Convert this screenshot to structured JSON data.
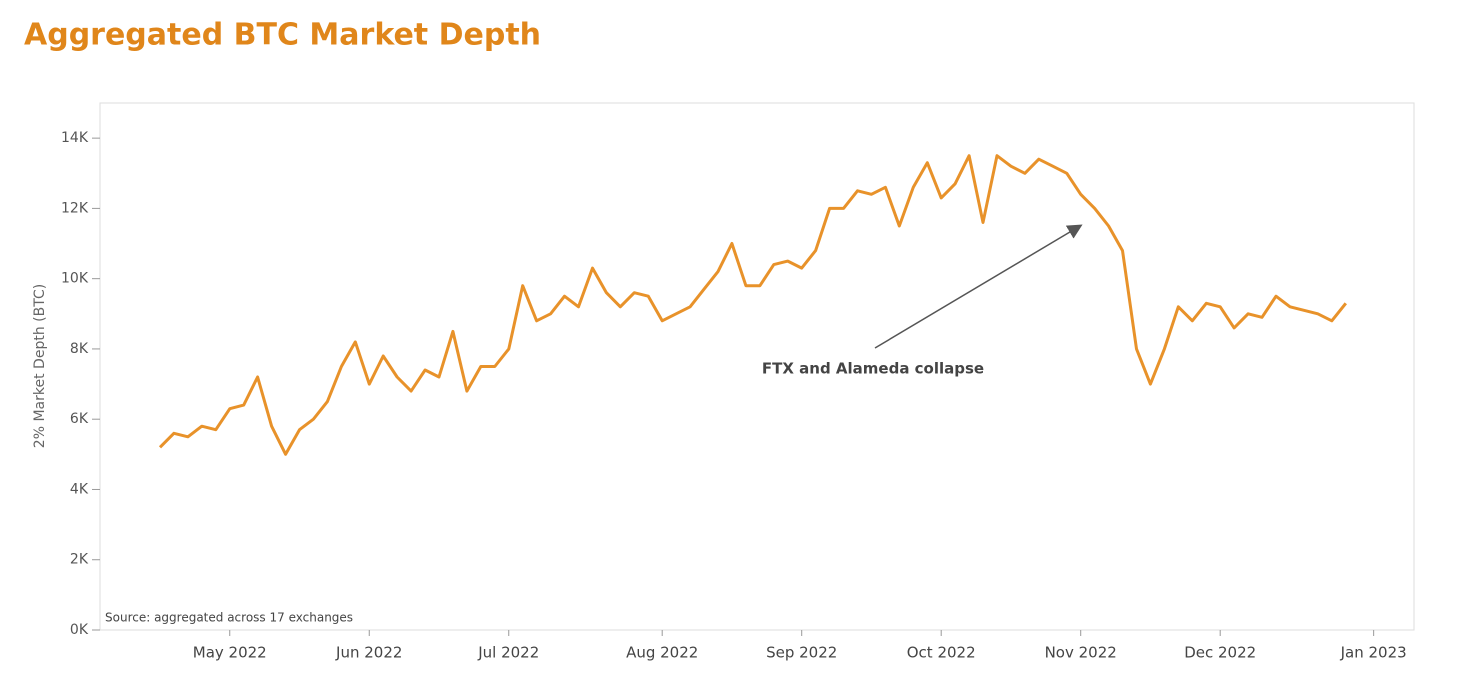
{
  "chart_data": {
    "type": "line",
    "title": "Aggregated BTC Market Depth",
    "y_label": "2% Market Depth (BTC)",
    "source": "Source: aggregated across 17 exchanges",
    "annotation": "FTX and Alameda collapse",
    "categories": [
      null,
      null,
      null,
      null,
      null,
      "May 2022",
      null,
      null,
      null,
      null,
      null,
      null,
      null,
      null,
      null,
      "Jun 2022",
      null,
      null,
      null,
      null,
      null,
      null,
      null,
      null,
      null,
      "Jul 2022",
      null,
      null,
      null,
      null,
      null,
      null,
      null,
      null,
      null,
      null,
      "Aug 2022",
      null,
      null,
      null,
      null,
      null,
      null,
      null,
      null,
      null,
      "Sep 2022",
      null,
      null,
      null,
      null,
      null,
      null,
      null,
      null,
      null,
      "Oct 2022",
      null,
      null,
      null,
      null,
      null,
      null,
      null,
      null,
      null,
      "Nov 2022",
      null,
      null,
      null,
      null,
      null,
      null,
      null,
      null,
      null,
      "Dec 2022",
      null,
      null,
      null,
      null,
      null,
      null,
      null,
      null,
      null,
      null,
      "Jan 2023"
    ],
    "series": [
      {
        "name": "2% Market Depth",
        "color": "#e8922a",
        "values": [
          5200,
          5600,
          5500,
          5800,
          5700,
          6300,
          6400,
          7200,
          5800,
          5000,
          5700,
          6000,
          6500,
          7500,
          8200,
          7000,
          7800,
          7200,
          6800,
          7400,
          7200,
          8500,
          6800,
          7500,
          7500,
          8000,
          9800,
          8800,
          9000,
          9500,
          9200,
          10300,
          9600,
          9200,
          9600,
          9500,
          8800,
          9000,
          9200,
          9700,
          10200,
          11000,
          9800,
          9800,
          10400,
          10500,
          10300,
          10800,
          12000,
          12000,
          12500,
          12400,
          12600,
          11500,
          12600,
          13300,
          12300,
          12700,
          13500,
          11600,
          13500,
          13200,
          13000,
          13400,
          13200,
          13000,
          12400,
          12000,
          11500,
          10800,
          8000,
          7000,
          8000,
          9200,
          8800,
          9300,
          9200,
          8600,
          9000,
          8900,
          9500,
          9200,
          9100,
          9000,
          8800,
          9300,
          null,
          null
        ]
      }
    ],
    "ylim": [
      0,
      15000
    ],
    "yticks": [
      {
        "value": 0,
        "label": "0K"
      },
      {
        "value": 2000,
        "label": "2K"
      },
      {
        "value": 4000,
        "label": "4K"
      },
      {
        "value": 6000,
        "label": "6K"
      },
      {
        "value": 8000,
        "label": "8K"
      },
      {
        "value": 10000,
        "label": "10K"
      },
      {
        "value": 12000,
        "label": "12K"
      },
      {
        "value": 14000,
        "label": "14K"
      }
    ],
    "grid": false
  }
}
